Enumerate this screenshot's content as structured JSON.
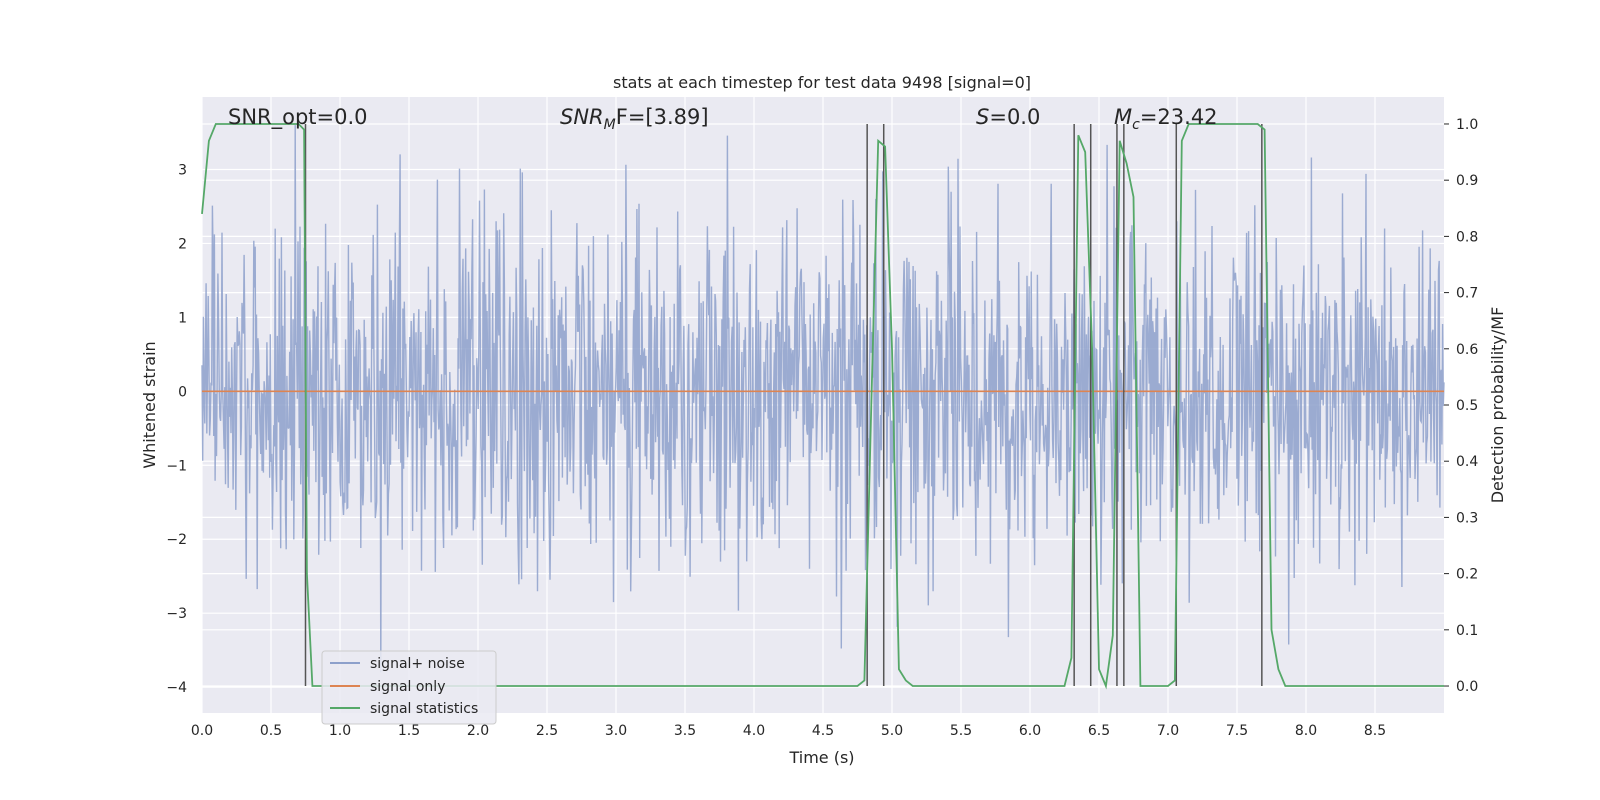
{
  "chart_data": {
    "type": "line",
    "title": "stats at each timestep for test data 9498 [signal=0]",
    "xlabel": "Time (s)",
    "ylabel": "Whitened strain",
    "ylabel_right": "Detection probability/MF",
    "xlim": [
      0.0,
      9.0
    ],
    "ylim": [
      -4.35,
      3.98
    ],
    "ylim_right": [
      -0.048,
      1.048
    ],
    "x_ticks": [
      "0.0",
      "0.5",
      "1.0",
      "1.5",
      "2.0",
      "2.5",
      "3.0",
      "3.5",
      "4.0",
      "4.5",
      "5.0",
      "5.5",
      "6.0",
      "6.5",
      "7.0",
      "7.5",
      "8.0",
      "8.5"
    ],
    "y_ticks": [
      "3",
      "2",
      "1",
      "0",
      "−1",
      "−2",
      "−3",
      "−4"
    ],
    "y_ticks_right": [
      "1.0",
      "0.9",
      "0.8",
      "0.7",
      "0.6",
      "0.5",
      "0.4",
      "0.3",
      "0.2",
      "0.1",
      "0.0"
    ],
    "grid": true,
    "legend_position": "lower-left",
    "annotations": {
      "snr_opt": "SNR_opt=0.0",
      "snr_mf_main": "SNR",
      "snr_mf_sub": "M",
      "snr_mf_rest": "F=[3.89]",
      "s_main": "S",
      "s_rest": "=0.0",
      "mc_main": "M",
      "mc_sub": "c",
      "mc_rest": "=23.42"
    },
    "series": [
      {
        "name": "signal+ noise",
        "color": "#8da0cb",
        "axis": "left",
        "style": "dense-noise",
        "noise_std": 1.0,
        "noise_range": [
          -3.8,
          3.6
        ],
        "samples": 1800
      },
      {
        "name": "signal only",
        "color": "#dd8452",
        "axis": "left",
        "x": [
          0.0,
          9.0
        ],
        "y": [
          0.0,
          0.0
        ]
      },
      {
        "name": "signal statistics",
        "color": "#55a868",
        "axis": "right",
        "x": [
          0.0,
          0.05,
          0.1,
          0.15,
          0.25,
          0.5,
          0.65,
          0.7,
          0.74,
          0.76,
          0.8,
          0.82,
          1.0,
          2.0,
          3.0,
          4.0,
          4.75,
          4.8,
          4.85,
          4.9,
          4.95,
          5.0,
          5.05,
          5.1,
          5.15,
          5.25,
          5.5,
          6.0,
          6.25,
          6.3,
          6.35,
          6.4,
          6.45,
          6.5,
          6.55,
          6.6,
          6.65,
          6.7,
          6.75,
          6.8,
          6.85,
          7.0,
          7.05,
          7.1,
          7.15,
          7.5,
          7.65,
          7.7,
          7.75,
          7.8,
          7.85,
          8.0,
          8.5,
          9.0
        ],
        "y": [
          0.84,
          0.97,
          1.0,
          1.0,
          1.0,
          1.0,
          1.0,
          1.0,
          0.99,
          0.2,
          0.0,
          0.0,
          0.0,
          0.0,
          0.0,
          0.0,
          0.0,
          0.01,
          0.5,
          0.97,
          0.96,
          0.6,
          0.03,
          0.01,
          0.0,
          0.0,
          0.0,
          0.0,
          0.0,
          0.05,
          0.98,
          0.95,
          0.6,
          0.03,
          0.0,
          0.09,
          0.97,
          0.93,
          0.87,
          0.0,
          0.0,
          0.0,
          0.01,
          0.97,
          1.0,
          1.0,
          1.0,
          0.99,
          0.1,
          0.03,
          0.0,
          0.0,
          0.0,
          0.0
        ]
      }
    ],
    "vertical_lines": {
      "color": "#555555",
      "x": [
        0.75,
        4.82,
        4.94,
        6.32,
        6.44,
        6.63,
        6.68,
        7.06,
        7.68
      ]
    }
  }
}
